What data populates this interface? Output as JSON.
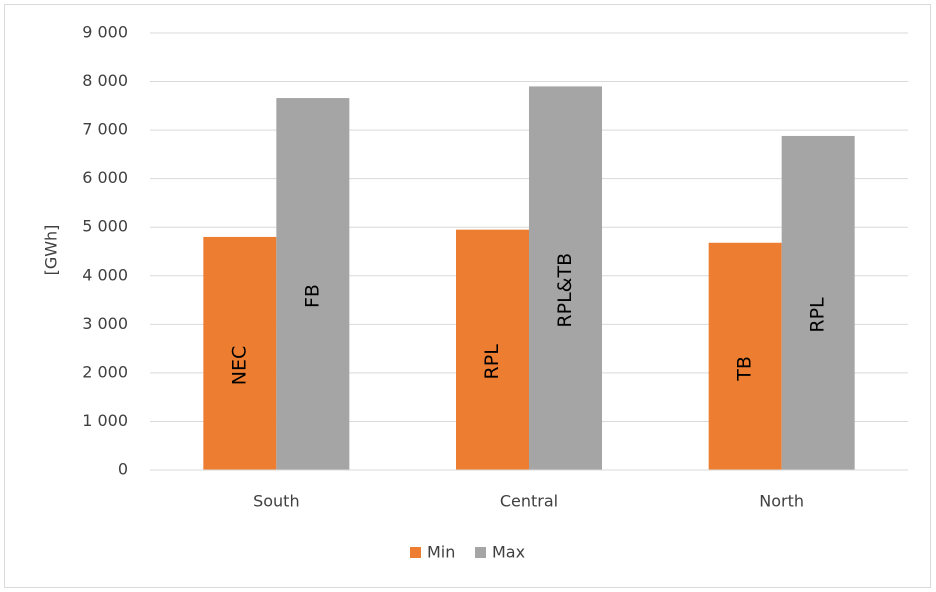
{
  "chart_data": {
    "type": "bar",
    "y_label": "[GWh]",
    "categories": [
      "South",
      "Central",
      "North"
    ],
    "series": [
      {
        "name": "Min",
        "color": "#ed7d31",
        "values": [
          4800,
          4950,
          4680
        ],
        "bar_labels": [
          "NEC",
          "RPL",
          "TB"
        ]
      },
      {
        "name": "Max",
        "color": "#a5a5a5",
        "values": [
          7660,
          7900,
          6880
        ],
        "bar_labels": [
          "FB",
          "RPL&TB",
          "RPL"
        ]
      }
    ],
    "ylim": [
      0,
      9000
    ],
    "yticks": [
      0,
      {
        "value": 1000,
        "label": "1 000"
      },
      {
        "value": 2000,
        "label": "2 000"
      },
      {
        "value": 3000,
        "label": "3 000"
      },
      {
        "value": 4000,
        "label": "4 000"
      },
      {
        "value": 5000,
        "label": "5 000"
      },
      {
        "value": 6000,
        "label": "6 000"
      },
      {
        "value": 7000,
        "label": "7 000"
      },
      {
        "value": 8000,
        "label": "8 000"
      },
      {
        "value": 9000,
        "label": "9 000"
      }
    ],
    "grid": true,
    "legend": "bottom"
  }
}
